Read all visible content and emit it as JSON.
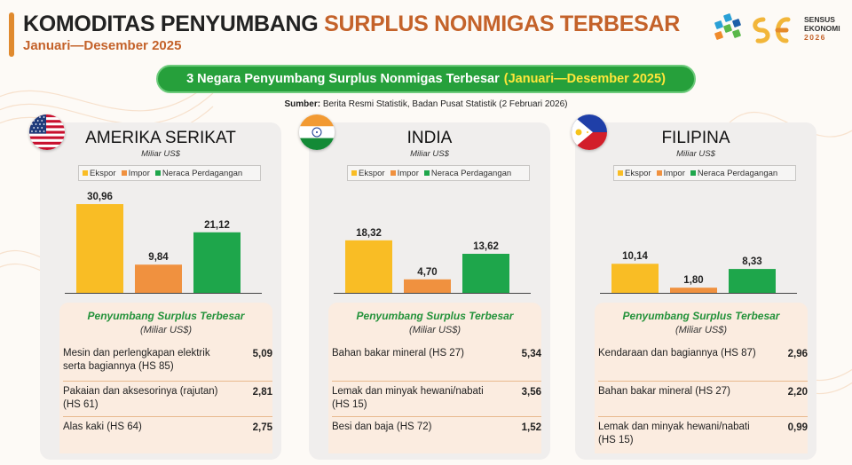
{
  "header": {
    "title_part1": "KOMODITAS PENYUMBANG",
    "title_part2": "SURPLUS NONMIGAS TERBESAR",
    "subtitle": "Januari—Desember 2025",
    "logo_line1": "SENSUS",
    "logo_line2": "EKONOMI",
    "logo_line3": "2026"
  },
  "banner": {
    "text": "3 Negara Penyumbang Surplus Nonmigas Terbesar",
    "highlight": "(Januari—Desember 2025)"
  },
  "source": {
    "label": "Sumber:",
    "text": "Berita Resmi Statistik, Badan Pusat Statistik (2 Februari 2026)"
  },
  "colors": {
    "ekspor": "#f9bd25",
    "impor": "#f0913f",
    "neraca": "#1ea64b",
    "accent": "#c4622a",
    "banner_bg": "#26a03b",
    "banner_highlight": "#ffe63a"
  },
  "legend": [
    "Ekspor",
    "Impor",
    "Neraca Perdagangan"
  ],
  "countries": [
    {
      "name": "AMERIKA SERIKAT",
      "unit": "Miliar US$",
      "flag_icon": "us-flag-icon",
      "contrib_title": "Penyumbang Surplus Terbesar",
      "contrib_unit": "(Miliar US$)",
      "items": [
        {
          "label": "Mesin dan perlengkapan elektrik serta bagiannya (HS 85)",
          "value": "5,09"
        },
        {
          "label": "Pakaian dan aksesorinya (rajutan) (HS 61)",
          "value": "2,81"
        },
        {
          "label": "Alas kaki (HS 64)",
          "value": "2,75"
        }
      ]
    },
    {
      "name": "INDIA",
      "unit": "Miliar US$",
      "flag_icon": "india-flag-icon",
      "contrib_title": "Penyumbang Surplus Terbesar",
      "contrib_unit": "(Miliar US$)",
      "items": [
        {
          "label": "Bahan bakar mineral (HS 27)",
          "value": "5,34"
        },
        {
          "label": "Lemak dan minyak hewani/nabati (HS 15)",
          "value": "3,56"
        },
        {
          "label": "Besi dan baja (HS 72)",
          "value": "1,52"
        }
      ]
    },
    {
      "name": "FILIPINA",
      "unit": "Miliar US$",
      "flag_icon": "philippines-flag-icon",
      "contrib_title": "Penyumbang Surplus Terbesar",
      "contrib_unit": "(Miliar US$)",
      "items": [
        {
          "label": "Kendaraan dan bagiannya (HS 87)",
          "value": "2,96"
        },
        {
          "label": "Bahan bakar mineral (HS 27)",
          "value": "2,20"
        },
        {
          "label": "Lemak dan minyak hewani/nabati (HS 15)",
          "value": "0,99"
        }
      ]
    }
  ],
  "chart_data": [
    {
      "type": "bar",
      "title": "AMERIKA SERIKAT",
      "subtitle": "Miliar US$",
      "categories": [
        "Ekspor",
        "Impor",
        "Neraca Perdagangan"
      ],
      "values": [
        30.96,
        9.84,
        21.12
      ],
      "value_labels": [
        "30,96",
        "9,84",
        "21,12"
      ],
      "legend_position": "top",
      "grid": false
    },
    {
      "type": "bar",
      "title": "INDIA",
      "subtitle": "Miliar US$",
      "categories": [
        "Ekspor",
        "Impor",
        "Neraca Perdagangan"
      ],
      "values": [
        18.32,
        4.7,
        13.62
      ],
      "value_labels": [
        "18,32",
        "4,70",
        "13,62"
      ],
      "legend_position": "top",
      "grid": false
    },
    {
      "type": "bar",
      "title": "FILIPINA",
      "subtitle": "Miliar US$",
      "categories": [
        "Ekspor",
        "Impor",
        "Neraca Perdagangan"
      ],
      "values": [
        10.14,
        1.8,
        8.33
      ],
      "value_labels": [
        "10,14",
        "1,80",
        "8,33"
      ],
      "legend_position": "top",
      "grid": false
    }
  ]
}
